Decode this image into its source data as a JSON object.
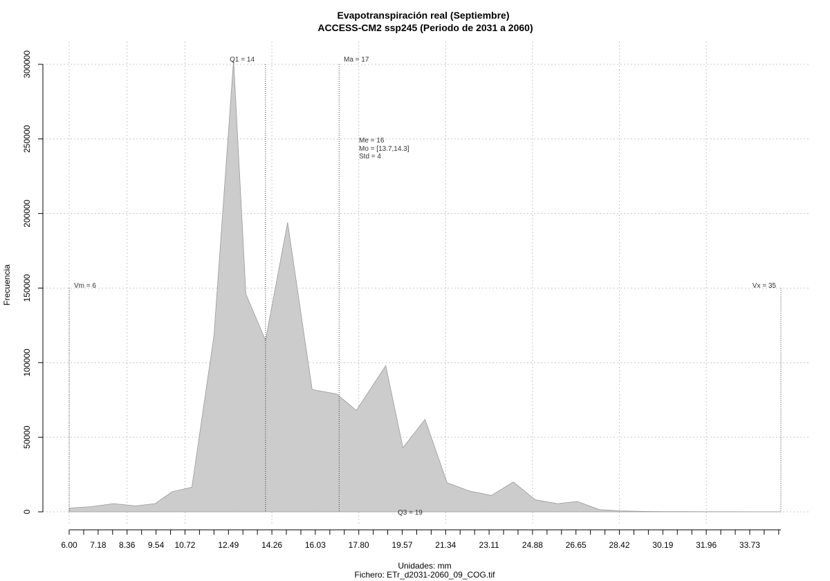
{
  "chart_data": {
    "type": "area",
    "title": "Evapotranspiración real (Septiembre)",
    "subtitle": "ACCESS-CM2 ssp245 (Periodo de 2031 a 2060)",
    "xlabel": "Unidades: mm",
    "ylabel": "Frecuencia",
    "source": "Fichero: ETr_d2031-2060_09_COG.tif",
    "xlim": [
      6.0,
      35.0
    ],
    "ylim": [
      0,
      300000
    ],
    "grid": true,
    "x_ticks": [
      "6.00",
      "7.18",
      "8.36",
      "9.54",
      "10.72",
      "12.49",
      "14.26",
      "16.03",
      "17.80",
      "19.57",
      "21.34",
      "23.11",
      "24.88",
      "26.65",
      "28.42",
      "30.19",
      "31.96",
      "33.73"
    ],
    "x_tick_values": [
      6.0,
      7.18,
      8.36,
      9.54,
      10.72,
      12.49,
      14.26,
      16.03,
      17.8,
      19.57,
      21.34,
      23.11,
      24.88,
      26.65,
      28.42,
      30.19,
      31.96,
      33.73
    ],
    "minor_tick_values": [
      6.59,
      7.77,
      8.95,
      10.13,
      11.31,
      11.9,
      13.08,
      13.67,
      14.85,
      15.44,
      16.62,
      17.21,
      18.39,
      18.98,
      20.16,
      20.75,
      21.93,
      22.52,
      23.7,
      24.29,
      25.47,
      26.06,
      27.24,
      27.83,
      29.01,
      29.6,
      30.78,
      31.37,
      32.55,
      33.14,
      34.32,
      34.91
    ],
    "y_ticks": [
      "0",
      "50000",
      "100000",
      "150000",
      "200000",
      "250000",
      "300000"
    ],
    "y_tick_values": [
      0,
      50000,
      100000,
      150000,
      200000,
      250000,
      300000
    ],
    "series": [
      {
        "x": [
          6.0,
          6.9,
          7.8,
          8.7,
          9.5,
          10.2,
          11.0,
          11.9,
          12.7,
          13.2,
          14.0,
          14.9,
          15.9,
          16.9,
          17.7,
          18.9,
          19.6,
          20.5,
          21.4,
          22.3,
          23.2,
          24.1,
          25.0,
          25.9,
          26.7,
          27.6,
          28.5,
          29.4,
          30.3,
          31.1,
          32.0,
          32.9,
          33.8,
          34.5,
          35.0
        ],
        "values": [
          2500,
          3500,
          5500,
          4000,
          5500,
          13500,
          16500,
          118000,
          303000,
          146000,
          115000,
          194000,
          82000,
          79000,
          68000,
          98000,
          43000,
          62000,
          19500,
          14000,
          11000,
          20000,
          8000,
          5500,
          7000,
          1500,
          600,
          300,
          200,
          150,
          100,
          80,
          60,
          40,
          30
        ]
      }
    ],
    "annotations": {
      "vm": {
        "label": "Vm = 6",
        "x": 6.0
      },
      "q1": {
        "label": "Q1 = 14",
        "x": 14.0
      },
      "ma": {
        "label": "Ma = 17",
        "x": 17.0
      },
      "vx": {
        "label": "Vx = 35",
        "x": 35.0
      },
      "q3": {
        "label": "Q3 = 19",
        "x": 19.0
      },
      "stats": [
        "Me = 16",
        "Mo = [13.7,14.3]",
        "Std = 4"
      ]
    },
    "colors": {
      "fill": "#cccccc",
      "stroke": "#999999",
      "grid": "#c8c8c8",
      "marker_line": "#333333"
    }
  }
}
